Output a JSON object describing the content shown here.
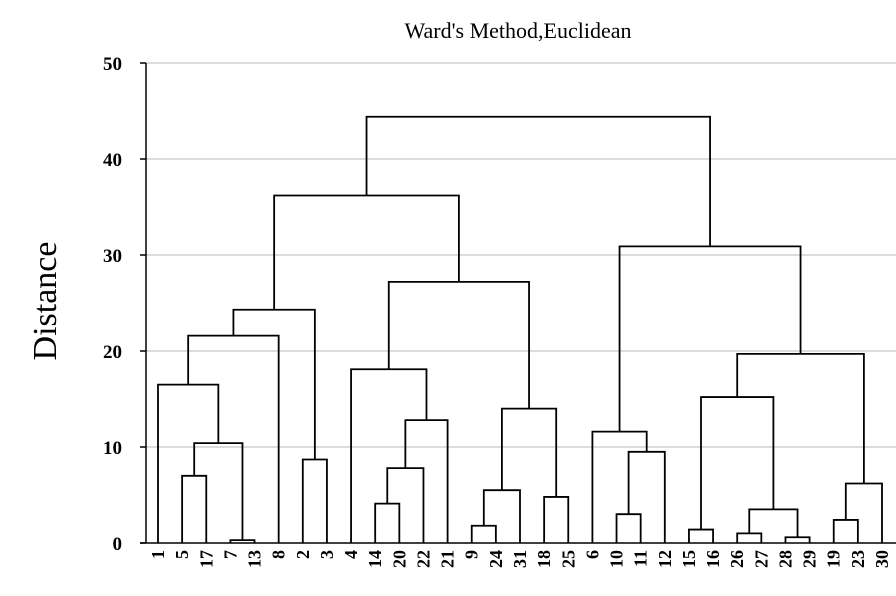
{
  "chart_data": {
    "type": "dendrogram",
    "title": "Ward's Method,Euclidean",
    "ylabel": "Distance",
    "xlabel": "",
    "ylim": [
      0,
      50
    ],
    "yticks": [
      0,
      10,
      20,
      30,
      40,
      50
    ],
    "grid": true,
    "leaf_order": [
      "1",
      "5",
      "17",
      "7",
      "13",
      "8",
      "2",
      "3",
      "4",
      "14",
      "20",
      "22",
      "21",
      "9",
      "24",
      "31",
      "18",
      "25",
      "6",
      "10",
      "11",
      "12",
      "15",
      "16",
      "26",
      "27",
      "28",
      "29",
      "19",
      "23",
      "30"
    ],
    "merges": [
      {
        "left": "7",
        "right": "13",
        "height": 0.3
      },
      {
        "left": "5",
        "right": "17",
        "height": 7.0
      },
      {
        "left": "5+17",
        "right": "7+13",
        "height": 10.4
      },
      {
        "left": "1",
        "right": "5+17+7+13",
        "height": 16.5
      },
      {
        "left": "2",
        "right": "3",
        "height": 8.7
      },
      {
        "left": "1+5+17+7+13",
        "right": "8",
        "height": 21.6
      },
      {
        "left": "1+5+17+7+13+8",
        "right": "2+3",
        "height": 24.3
      },
      {
        "left": "14",
        "right": "20",
        "height": 4.1
      },
      {
        "left": "14+20",
        "right": "22",
        "height": 7.8
      },
      {
        "left": "14+20+22",
        "right": "21",
        "height": 12.8
      },
      {
        "left": "4",
        "right": "14+20+22+21",
        "height": 18.1
      },
      {
        "left": "9",
        "right": "24",
        "height": 1.8
      },
      {
        "left": "9+24",
        "right": "31",
        "height": 5.5
      },
      {
        "left": "18",
        "right": "25",
        "height": 4.8
      },
      {
        "left": "9+24+31",
        "right": "18+25",
        "height": 14.0
      },
      {
        "left": "4+14+20+22+21",
        "right": "9+24+31+18+25",
        "height": 27.2
      },
      {
        "left": "1+5+17+7+13+8+2+3",
        "right": "4+14+20+22+21+9+24+31+18+25",
        "height": 36.2
      },
      {
        "left": "10",
        "right": "11",
        "height": 3.0
      },
      {
        "left": "10+11",
        "right": "12",
        "height": 9.5
      },
      {
        "left": "6",
        "right": "10+11+12",
        "height": 11.6
      },
      {
        "left": "15",
        "right": "16",
        "height": 1.4
      },
      {
        "left": "26",
        "right": "27",
        "height": 1.0
      },
      {
        "left": "28",
        "right": "29",
        "height": 0.6
      },
      {
        "left": "26+27",
        "right": "28+29",
        "height": 3.5
      },
      {
        "left": "15+16",
        "right": "26+27+28+29",
        "height": 15.2
      },
      {
        "left": "19",
        "right": "23",
        "height": 2.4
      },
      {
        "left": "19+23",
        "right": "30",
        "height": 6.2
      },
      {
        "left": "15+16+26+27+28+29",
        "right": "19+23+30",
        "height": 19.7
      },
      {
        "left": "6+10+11+12",
        "right": "15+16+26+27+28+29+19+23+30",
        "height": 30.9
      },
      {
        "left": "1+5+17+7+13+8+2+3+4+14+20+22+21+9+24+31+18+25",
        "right": "6+10+11+12+15+16+26+27+28+29+19+23+30",
        "height": 44.4
      }
    ]
  }
}
